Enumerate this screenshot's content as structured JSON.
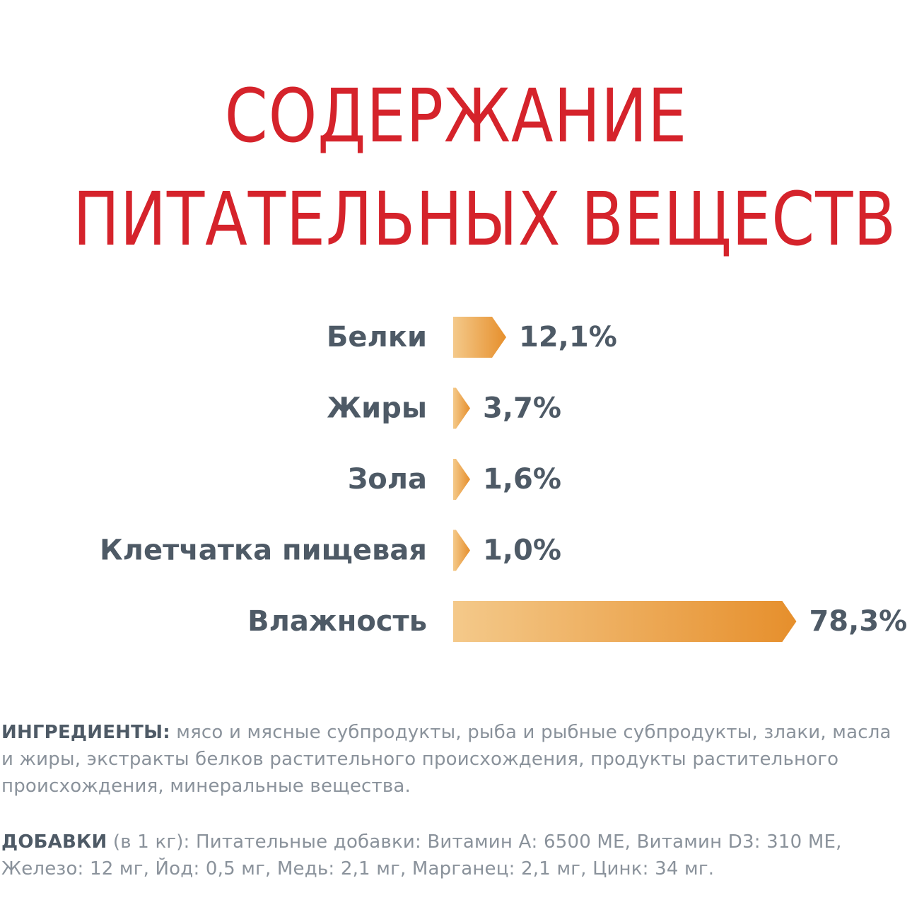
{
  "title": {
    "line1": "СОДЕРЖАНИЕ",
    "line2": "ПИТАТЕЛЬНЫХ ВЕЩЕСТВ"
  },
  "colors": {
    "title": "#d5232b",
    "label": "#4e5a66",
    "bar_start": "#f4c98a",
    "bar_end": "#e68f2c",
    "notes": "#8a929b"
  },
  "chart_data": {
    "type": "bar",
    "orientation": "horizontal",
    "categories": [
      "Белки",
      "Жиры",
      "Зола",
      "Клетчатка пищевая",
      "Влажность"
    ],
    "values": [
      12.1,
      3.7,
      1.6,
      1.0,
      78.3
    ],
    "value_labels": [
      "12,1%",
      "3,7%",
      "1,6%",
      "1,0%",
      "78,3%"
    ],
    "unit": "%",
    "grid": false,
    "legend": false
  },
  "ingredients": {
    "heading": "ИНГРЕДИЕНТЫ:",
    "text": " мясо и мясные субпродукты, рыба и рыбные субпродукты, злаки, масла и жиры, экстракты белков растительного происхождения, продукты растительного происхождения, минеральные вещества."
  },
  "additives": {
    "heading": "ДОБАВКИ",
    "text": " (в 1 кг): Питательные добавки: Витамин А: 6500 МЕ, Витамин D3: 310 МЕ, Железо: 12 мг, Йод: 0,5 мг, Медь: 2,1 мг, Марганец: 2,1 мг, Цинк: 34 мг."
  }
}
